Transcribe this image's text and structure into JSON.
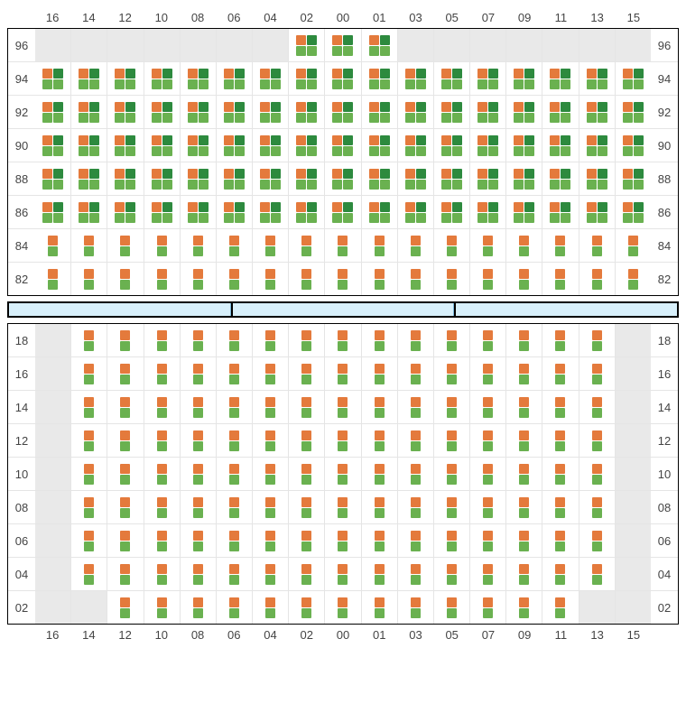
{
  "colors": {
    "orange": "#e47a3c",
    "green": "#6ab150",
    "darkgreen": "#2d8a3e",
    "empty": "#e9e9e9",
    "divider": "#d8f0fb",
    "border": "#000",
    "gridline": "#e5e5e5",
    "text": "#444"
  },
  "columns": [
    "16",
    "14",
    "12",
    "10",
    "08",
    "06",
    "04",
    "02",
    "00",
    "01",
    "03",
    "05",
    "07",
    "09",
    "11",
    "13",
    "15"
  ],
  "top": {
    "rows": [
      "96",
      "94",
      "92",
      "90",
      "88",
      "86",
      "84",
      "82"
    ],
    "cells": [
      [
        "e",
        "e",
        "e",
        "e",
        "e",
        "e",
        "e",
        "q",
        "q",
        "q",
        "e",
        "e",
        "e",
        "e",
        "e",
        "e",
        "e"
      ],
      [
        "q",
        "q",
        "q",
        "q",
        "q",
        "q",
        "q",
        "q",
        "q",
        "q",
        "q",
        "q",
        "q",
        "q",
        "q",
        "q",
        "q"
      ],
      [
        "q",
        "q",
        "q",
        "q",
        "q",
        "q",
        "q",
        "q",
        "q",
        "q",
        "q",
        "q",
        "q",
        "q",
        "q",
        "q",
        "q"
      ],
      [
        "q",
        "q",
        "q",
        "q",
        "q",
        "q",
        "q",
        "q",
        "q",
        "q",
        "q",
        "q",
        "q",
        "q",
        "q",
        "q",
        "q"
      ],
      [
        "q",
        "q",
        "q",
        "q",
        "q",
        "q",
        "q",
        "q",
        "q",
        "q",
        "q",
        "q",
        "q",
        "q",
        "q",
        "q",
        "q"
      ],
      [
        "q",
        "q",
        "q",
        "q",
        "q",
        "q",
        "q",
        "q",
        "q",
        "q",
        "q",
        "q",
        "q",
        "q",
        "q",
        "q",
        "q"
      ],
      [
        "v",
        "v",
        "v",
        "v",
        "v",
        "v",
        "v",
        "v",
        "v",
        "v",
        "v",
        "v",
        "v",
        "v",
        "v",
        "v",
        "v"
      ],
      [
        "v",
        "v",
        "v",
        "v",
        "v",
        "v",
        "v",
        "v",
        "v",
        "v",
        "v",
        "v",
        "v",
        "v",
        "v",
        "v",
        "v"
      ]
    ]
  },
  "bottom": {
    "rows": [
      "18",
      "16",
      "14",
      "12",
      "10",
      "08",
      "06",
      "04",
      "02"
    ],
    "cells": [
      [
        "e",
        "v",
        "v",
        "v",
        "v",
        "v",
        "v",
        "v",
        "v",
        "v",
        "v",
        "v",
        "v",
        "v",
        "v",
        "v",
        "e"
      ],
      [
        "e",
        "v",
        "v",
        "v",
        "v",
        "v",
        "v",
        "v",
        "v",
        "v",
        "v",
        "v",
        "v",
        "v",
        "v",
        "v",
        "e"
      ],
      [
        "e",
        "v",
        "v",
        "v",
        "v",
        "v",
        "v",
        "v",
        "v",
        "v",
        "v",
        "v",
        "v",
        "v",
        "v",
        "v",
        "e"
      ],
      [
        "e",
        "v",
        "v",
        "v",
        "v",
        "v",
        "v",
        "v",
        "v",
        "v",
        "v",
        "v",
        "v",
        "v",
        "v",
        "v",
        "e"
      ],
      [
        "e",
        "v",
        "v",
        "v",
        "v",
        "v",
        "v",
        "v",
        "v",
        "v",
        "v",
        "v",
        "v",
        "v",
        "v",
        "v",
        "e"
      ],
      [
        "e",
        "v",
        "v",
        "v",
        "v",
        "v",
        "v",
        "v",
        "v",
        "v",
        "v",
        "v",
        "v",
        "v",
        "v",
        "v",
        "e"
      ],
      [
        "e",
        "v",
        "v",
        "v",
        "v",
        "v",
        "v",
        "v",
        "v",
        "v",
        "v",
        "v",
        "v",
        "v",
        "v",
        "v",
        "e"
      ],
      [
        "e",
        "v",
        "v",
        "v",
        "v",
        "v",
        "v",
        "v",
        "v",
        "v",
        "v",
        "v",
        "v",
        "v",
        "v",
        "v",
        "e"
      ],
      [
        "e",
        "e",
        "v",
        "v",
        "v",
        "v",
        "v",
        "v",
        "v",
        "v",
        "v",
        "v",
        "v",
        "v",
        "v",
        "e",
        "e"
      ]
    ]
  },
  "dividerSegments": 3
}
